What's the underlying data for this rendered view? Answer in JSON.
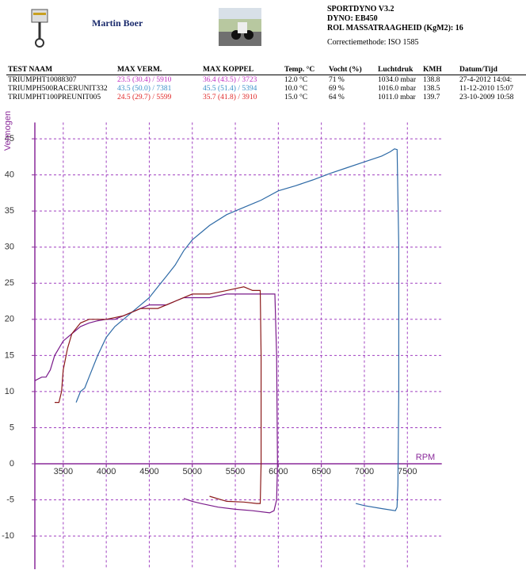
{
  "header": {
    "name": "Martin Boer",
    "lines": [
      "SPORTDYNO V3.2",
      "DYNO: EB450",
      "ROL MASSATRAAGHEID (KgM2):  16"
    ],
    "method": "Correctiemethode: ISO 1585"
  },
  "table": {
    "columns": [
      "TEST NAAM",
      "MAX VERM.",
      "MAX KOPPEL",
      "Temp. °C",
      "Vocht (%)",
      "Luchtdruk",
      "KMH",
      "Datum/Tijd"
    ],
    "rows": [
      [
        "TRIUMPHT10088307",
        "23.5 (30.4) / 5910",
        "36.4 (43.5) / 3723",
        "12.0 °C",
        "71 %",
        "1034.0 mbar",
        "138.8",
        "27-4-2012 14:04:"
      ],
      [
        "TRIUMPH500RACERUNIT332",
        "43.5 (50.0) / 7381",
        "45.5 (51.4) / 5394",
        "10.0 °C",
        "69 %",
        "1016.0 mbar",
        "138.5",
        "11-12-2010 15:07"
      ],
      [
        "TRIUMPHT100PREUNIT005",
        "24.5 (29.7) / 5599",
        "35.7 (41.8) / 3910",
        "15.0 °C",
        "64 %",
        "1011.0 mbar",
        "139.7",
        "23-10-2009 10:58"
      ]
    ],
    "row_colors": [
      "#c030c0",
      "#3a8fc8",
      "#e02828"
    ]
  },
  "chart_data": {
    "type": "line",
    "y_label": "Vermogen",
    "x_label": "RPM",
    "xlim": [
      3170,
      7900
    ],
    "ylim": [
      -14.6,
      46.6
    ],
    "xticks": [
      3500,
      4000,
      4500,
      5000,
      5500,
      6000,
      6500,
      7000,
      7500
    ],
    "yticks": [
      -10,
      -5,
      0,
      5,
      10,
      15,
      20,
      25,
      30,
      35,
      40,
      45
    ],
    "grid": true,
    "grid_color": "#a040c0",
    "axis_color": "#8a2a9a",
    "series": [
      {
        "color": "#7a1a8a",
        "x": [
          3170,
          3250,
          3300,
          3350,
          3400,
          3450,
          3500,
          3600,
          3700,
          3800,
          3900,
          4000,
          4100,
          4200,
          4300,
          4400,
          4500,
          4600,
          4700,
          4800,
          4900,
          5000,
          5200,
          5400,
          5600,
          5800,
          5910,
          5960,
          5980,
          5990,
          5980,
          5950,
          5900,
          5700,
          5500,
          5300,
          5100,
          5000,
          4900
        ],
        "values": [
          11.5,
          12,
          12,
          13,
          15,
          16,
          17,
          18,
          19,
          19.5,
          19.8,
          20,
          20,
          20.5,
          21,
          21.5,
          22,
          22,
          22,
          22.5,
          23,
          23,
          23,
          23.5,
          23.5,
          23.5,
          23.5,
          23.5,
          15,
          0,
          -5,
          -6.5,
          -6.8,
          -6.5,
          -6.3,
          -6,
          -5.5,
          -5.2,
          -4.8
        ]
      },
      {
        "color": "#2e6aa6",
        "x": [
          3650,
          3700,
          3750,
          3800,
          3900,
          4000,
          4100,
          4200,
          4300,
          4400,
          4500,
          4600,
          4700,
          4800,
          4900,
          5000,
          5200,
          5400,
          5600,
          5800,
          6000,
          6200,
          6400,
          6600,
          6800,
          7000,
          7200,
          7300,
          7350,
          7381,
          7400,
          7400,
          7390,
          7380,
          7360,
          7200,
          7000,
          6900
        ],
        "values": [
          8.5,
          10,
          10.5,
          12,
          15,
          17.5,
          19,
          20,
          21,
          22,
          23,
          24.5,
          26,
          27.5,
          29.5,
          31,
          33,
          34.5,
          35.5,
          36.5,
          37.8,
          38.5,
          39.3,
          40.2,
          41,
          41.8,
          42.6,
          43.2,
          43.6,
          43.5,
          30,
          10,
          -3,
          -6,
          -6.5,
          -6.2,
          -5.8,
          -5.5
        ]
      },
      {
        "color": "#8b1a1a",
        "x": [
          3400,
          3450,
          3480,
          3500,
          3550,
          3600,
          3700,
          3800,
          3900,
          4000,
          4200,
          4400,
          4600,
          4800,
          5000,
          5200,
          5400,
          5599,
          5700,
          5790,
          5800,
          5800,
          5790,
          5750,
          5600,
          5400,
          5200
        ],
        "values": [
          8.5,
          8.5,
          10,
          13,
          16,
          18,
          19.5,
          20,
          20,
          20,
          20.5,
          21.5,
          21.5,
          22.5,
          23.5,
          23.5,
          24,
          24.5,
          24,
          24,
          15,
          0,
          -5.5,
          -5.5,
          -5.3,
          -5.2,
          -4.5
        ]
      }
    ]
  }
}
